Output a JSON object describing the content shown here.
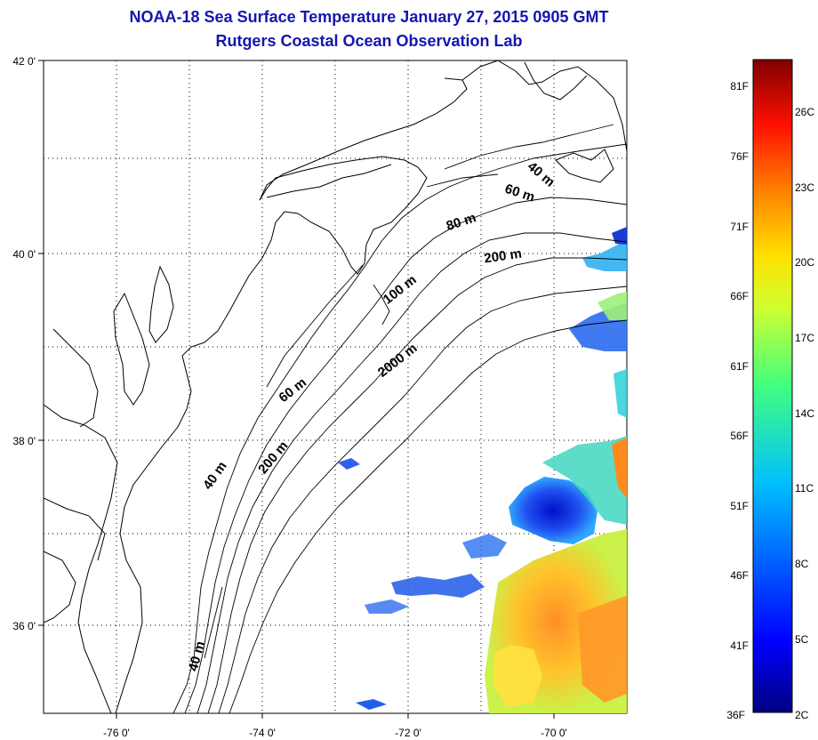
{
  "title": "NOAA-18 Sea Surface Temperature January 27, 2015 0905 GMT",
  "subtitle": "Rutgers Coastal Ocean Observation Lab",
  "axes": {
    "x_ticks": [
      "-76 0'",
      "-74 0'",
      "-72 0'",
      "-70 0'"
    ],
    "y_ticks": [
      "42 0'",
      "40 0'",
      "38 0'",
      "36 0'"
    ]
  },
  "colorbar": {
    "fahrenheit_labels": [
      "81F",
      "76F",
      "71F",
      "66F",
      "61F",
      "56F",
      "51F",
      "46F",
      "41F",
      "36F"
    ],
    "celsius_labels": [
      "26C",
      "23C",
      "20C",
      "17C",
      "14C",
      "11C",
      "8C",
      "5C",
      "2C"
    ]
  },
  "contour_labels": [
    "40 m",
    "60 m",
    "80 m",
    "200 m",
    "100 m",
    "2000 m",
    "60 m",
    "40 m",
    "200 m",
    "40 m"
  ],
  "colors": {
    "title": "#1515b0",
    "coast": "#000000",
    "grid": "#000000"
  }
}
